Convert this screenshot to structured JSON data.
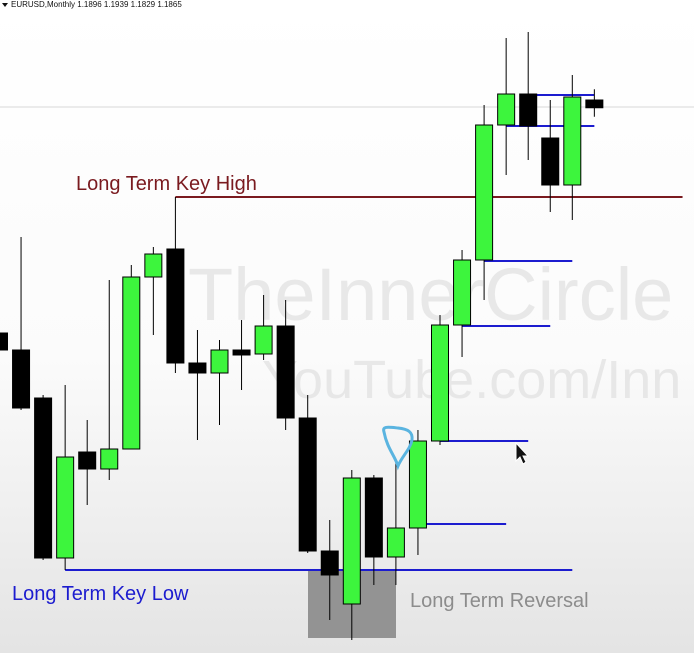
{
  "chart_data": {
    "type": "candlestick",
    "header": "EURUSD,Monthly  1.1896 1.1939 1.1829 1.1865",
    "watermark": [
      "TheInnerCircle",
      "YouTube.com/Inn"
    ],
    "annotations": {
      "key_high": "Long Term Key High",
      "key_low": "Long Term Key Low",
      "reversal": "Long Term Reversal"
    },
    "ylim": [
      0.9684,
      1.2296
    ],
    "up_color": "#3df53d",
    "down_color": "#000000",
    "open": [
      1.0964,
      1.0896,
      1.0704,
      1.0064,
      1.0488,
      1.042,
      1.05,
      1.1188,
      1.13,
      1.0844,
      1.0804,
      1.0896,
      1.088,
      1.0992,
      1.0624,
      1.0092,
      0.988,
      1.0384,
      1.0068,
      1.0184,
      1.0532,
      1.0996,
      1.1256,
      1.1796,
      1.192,
      1.1744,
      1.1556,
      1.1896
    ],
    "high": [
      1.0996,
      1.1348,
      1.0716,
      1.0756,
      1.0616,
      1.1176,
      1.1236,
      1.1308,
      1.1508,
      1.0976,
      1.0936,
      1.1016,
      1.1116,
      1.1096,
      1.0716,
      1.0216,
      1.0416,
      1.0396,
      1.0456,
      1.0576,
      1.1036,
      1.1296,
      1.1876,
      1.2144,
      1.2168,
      1.1896,
      1.1996,
      1.1939
    ],
    "low": [
      1.0876,
      1.0656,
      1.0056,
      1.0016,
      1.0276,
      1.0376,
      1.05,
      1.0956,
      1.0804,
      1.0536,
      1.0596,
      1.0736,
      1.0856,
      1.0576,
      1.0084,
      0.9816,
      0.9736,
      0.9956,
      0.9956,
      1.0076,
      1.0516,
      1.0868,
      1.1096,
      1.1596,
      1.1656,
      1.1448,
      1.1416,
      1.1829
    ],
    "close": [
      1.0896,
      1.0664,
      1.0064,
      1.0468,
      1.042,
      1.05,
      1.1188,
      1.128,
      1.0844,
      1.0804,
      1.0896,
      1.0876,
      1.0992,
      1.0624,
      1.0092,
      0.9996,
      1.0384,
      1.0068,
      1.0184,
      1.0532,
      1.0996,
      1.1256,
      1.1796,
      1.192,
      1.1792,
      1.1556,
      1.1908,
      1.1865
    ],
    "levels": [
      {
        "value": 1.1508,
        "start": 8,
        "end": 31,
        "color": "#7a1a1f"
      },
      {
        "value": 1.0016,
        "start": 3,
        "end": 26,
        "color": "#1c1ccf"
      },
      {
        "value": 1.1252,
        "start": 22,
        "end": 26,
        "color": "#1c1ccf"
      },
      {
        "value": 1.0992,
        "start": 21,
        "end": 25,
        "color": "#1c1ccf"
      },
      {
        "value": 1.0532,
        "start": 20,
        "end": 24,
        "color": "#1c1ccf"
      },
      {
        "value": 1.02,
        "start": 19,
        "end": 23,
        "color": "#1c1ccf"
      },
      {
        "value": 1.1916,
        "start": 24,
        "end": 27,
        "color": "#1c1ccf"
      },
      {
        "value": 1.1792,
        "start": 23,
        "end": 27,
        "color": "#1c1ccf"
      }
    ]
  }
}
